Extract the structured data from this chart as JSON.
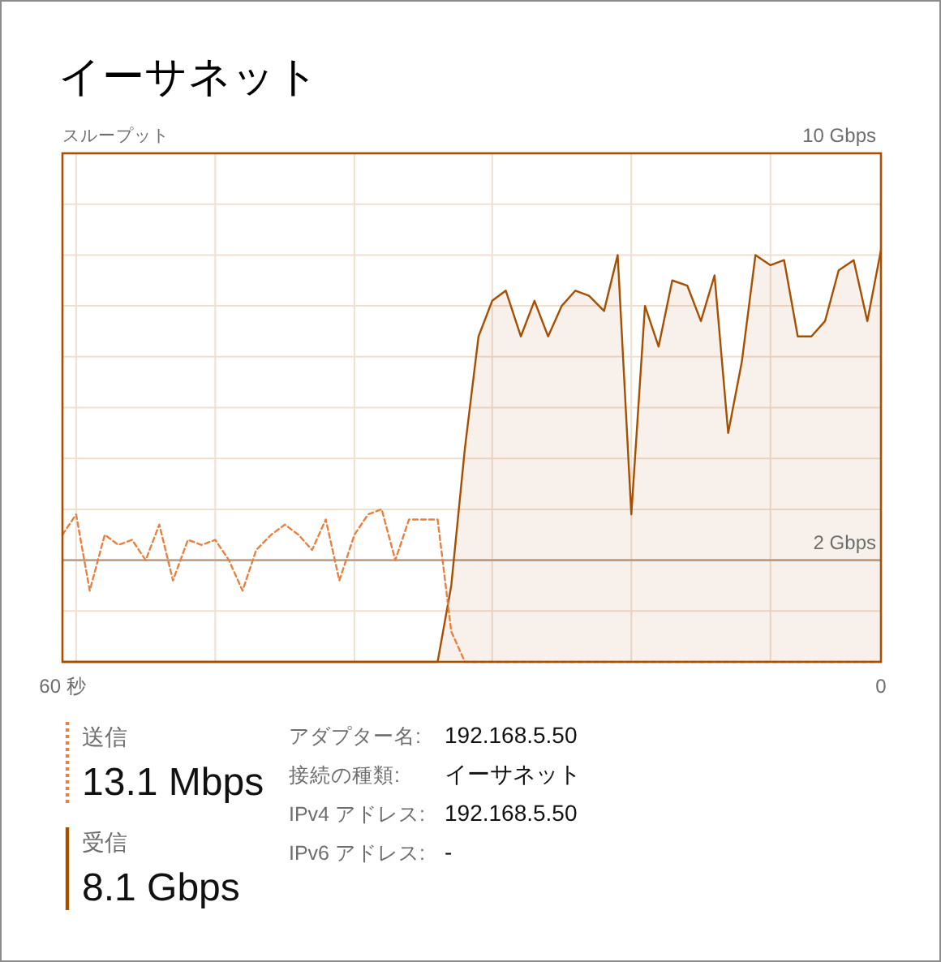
{
  "chart_data": {
    "type": "area",
    "title": "イーサネット",
    "ylabel": "スループット",
    "x": [
      60,
      59,
      58,
      56.9,
      55.9,
      54.9,
      53.9,
      52.9,
      51.9,
      50.8,
      49.8,
      48.8,
      47.8,
      46.8,
      45.8,
      44.7,
      43.7,
      42.7,
      41.7,
      40.7,
      39.7,
      38.6,
      37.6,
      36.6,
      35.6,
      34.6,
      33.6,
      32.5,
      31.5,
      30.5,
      29.5,
      28.5,
      27.5,
      26.4,
      25.4,
      24.4,
      23.4,
      22.4,
      21.4,
      20.3,
      19.3,
      18.3,
      17.3,
      16.3,
      15.3,
      14.2,
      13.2,
      12.2,
      11.2,
      10.2,
      9.2,
      8.1,
      7.1,
      6.1,
      5.1,
      4.1,
      3.1,
      2,
      1,
      0
    ],
    "xlim": [
      60,
      0
    ],
    "xticks": [
      {
        "value": 60,
        "label": "60 秒"
      },
      {
        "value": 59,
        "label": null
      },
      {
        "value": 48.8,
        "label": null
      },
      {
        "value": 38.6,
        "label": null
      },
      {
        "value": 28.5,
        "label": null
      },
      {
        "value": 18.3,
        "label": null
      },
      {
        "value": 8.1,
        "label": null
      },
      {
        "value": 0,
        "label": "0"
      }
    ],
    "ylim": [
      0,
      10
    ],
    "yticks": [
      {
        "value": 0,
        "label": null
      },
      {
        "value": 1,
        "label": null
      },
      {
        "value": 2,
        "label": "2 Gbps"
      },
      {
        "value": 3,
        "label": null
      },
      {
        "value": 4,
        "label": null
      },
      {
        "value": 5,
        "label": null
      },
      {
        "value": 6,
        "label": null
      },
      {
        "value": 7,
        "label": null
      },
      {
        "value": 8,
        "label": null
      },
      {
        "value": 9,
        "label": null
      },
      {
        "value": 10,
        "label": "10 Gbps"
      }
    ],
    "grid": true,
    "legend": "bottom left",
    "ref_lines": [
      {
        "axis": "y",
        "value": 2,
        "color": "#c4a184"
      }
    ],
    "series": [
      {
        "name": "送信",
        "type": "line",
        "line_style": "dashed",
        "color": "#e8803f",
        "values": [
          2.5,
          2.9,
          1.4,
          2.5,
          2.3,
          2.4,
          2.0,
          2.7,
          1.6,
          2.4,
          2.3,
          2.4,
          2.0,
          1.4,
          2.2,
          2.5,
          2.7,
          2.5,
          2.2,
          2.8,
          1.6,
          2.5,
          2.9,
          3.0,
          2.0,
          2.8,
          2.8,
          2.8,
          0.6,
          0,
          0,
          0,
          0,
          0,
          0,
          0,
          0,
          0,
          0,
          0,
          0,
          0,
          0,
          0,
          0,
          0,
          0,
          0,
          0,
          0,
          0,
          0,
          0,
          0,
          0,
          0,
          0,
          0,
          0,
          0
        ]
      },
      {
        "name": "受信",
        "color": "#a74f01",
        "values": [
          0,
          0,
          0,
          0,
          0,
          0,
          0,
          0,
          0,
          0,
          0,
          0,
          0,
          0,
          0,
          0,
          0,
          0,
          0,
          0,
          0,
          0,
          0,
          0,
          0,
          0,
          0,
          0,
          1.5,
          4.2,
          6.4,
          7.1,
          7.3,
          6.4,
          7.1,
          6.4,
          7.0,
          7.3,
          7.2,
          6.9,
          8.0,
          2.9,
          7.0,
          6.2,
          7.5,
          7.4,
          6.7,
          7.6,
          4.5,
          5.9,
          8.0,
          7.8,
          7.9,
          6.4,
          6.4,
          6.7,
          7.7,
          7.9,
          6.7,
          8.1
        ]
      }
    ],
    "annotations": [
      "13.1 Mbps",
      "8.1 Gbps",
      "アダプター名:",
      "192.168.5.50",
      "接続の種類:",
      "イーサネット",
      "IPv4 アドレス:",
      "192.168.5.50",
      "IPv6 アドレス:",
      "-"
    ]
  }
}
